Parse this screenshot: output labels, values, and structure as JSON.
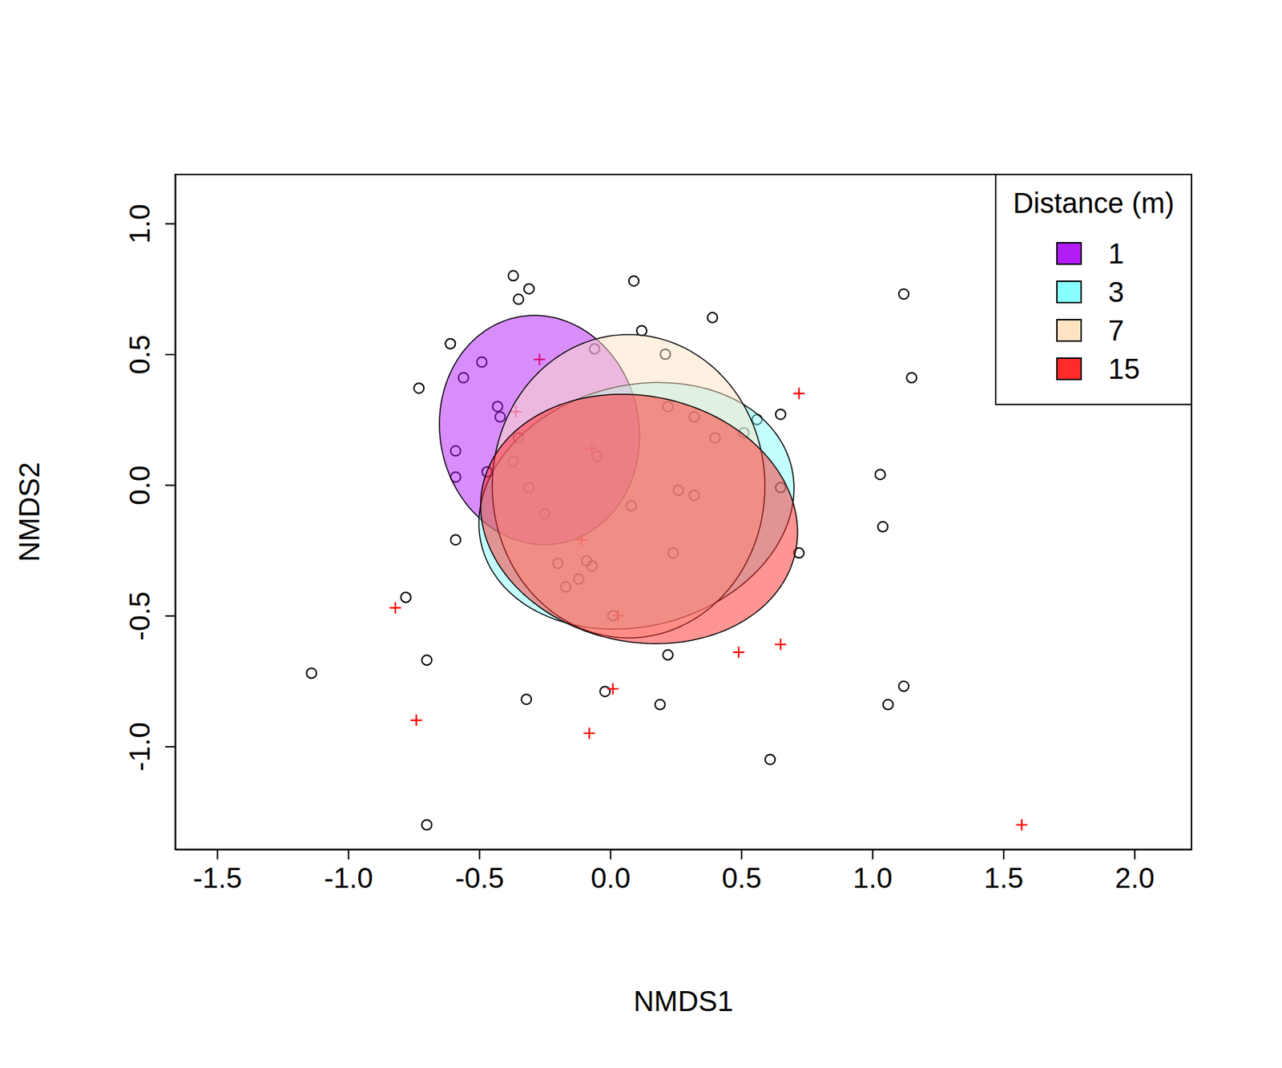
{
  "chart_data": {
    "type": "scatter",
    "x_label": "NMDS1",
    "y_label": "NMDS2",
    "xlim": [
      -1.66,
      2.218
    ],
    "ylim": [
      -1.394,
      1.1875
    ],
    "xticks": [
      {
        "value": -1.5,
        "label": "-1.5"
      },
      {
        "value": -1,
        "label": "-1.0"
      },
      {
        "value": -0.5,
        "label": "-0.5"
      },
      {
        "value": 0,
        "label": "0.0"
      },
      {
        "value": 0.5,
        "label": "0.5"
      },
      {
        "value": 1,
        "label": "1.0"
      },
      {
        "value": 1.5,
        "label": "1.5"
      },
      {
        "value": 2,
        "label": "2.0"
      }
    ],
    "yticks": [
      {
        "value": -1,
        "label": "-1.0"
      },
      {
        "value": -0.5,
        "label": "-0.5"
      },
      {
        "value": 0,
        "label": "0.0"
      },
      {
        "value": 0.5,
        "label": "0.5"
      },
      {
        "value": 1,
        "label": "1.0"
      }
    ],
    "grid": false,
    "legend": "top-right",
    "legend_title": "Distance (m)",
    "series": [
      {
        "marker": "circle",
        "color": "#000000",
        "x": [
          -0.37,
          -0.35,
          -0.31,
          0.09,
          0.39,
          1.12,
          -0.61,
          -0.49,
          -0.06,
          0.12,
          0.21,
          -0.73,
          -0.56,
          1.15,
          -0.43,
          -0.42,
          0.22,
          0.32,
          0.56,
          0.65,
          0.51,
          0.4,
          -0.35,
          -0.59,
          -0.05,
          -0.59,
          -0.47,
          -0.37,
          -0.31,
          0.26,
          0.32,
          0.65,
          1.03,
          -0.25,
          0.08,
          1.04,
          -0.59,
          0.24,
          0.72,
          -0.2,
          -0.09,
          -0.07,
          -0.12,
          -0.17,
          -0.78,
          0.01,
          -0.7,
          0.22,
          -1.14,
          -0.32,
          -0.02,
          0.19,
          1.06,
          1.12,
          0.61,
          -0.7
        ],
        "y": [
          0.8,
          0.71,
          0.75,
          0.78,
          0.64,
          0.73,
          0.54,
          0.47,
          0.52,
          0.59,
          0.5,
          0.37,
          0.41,
          0.41,
          0.3,
          0.26,
          0.3,
          0.26,
          0.25,
          0.27,
          0.2,
          0.18,
          0.18,
          0.13,
          0.11,
          0.03,
          0.05,
          0.09,
          -0.01,
          -0.02,
          -0.04,
          -0.01,
          0.04,
          -0.11,
          -0.08,
          -0.16,
          -0.21,
          -0.26,
          -0.26,
          -0.3,
          -0.29,
          -0.31,
          -0.36,
          -0.39,
          -0.43,
          -0.5,
          -0.67,
          -0.65,
          -0.72,
          -0.82,
          -0.79,
          -0.84,
          -0.84,
          -0.77,
          -1.05,
          -1.3
        ]
      },
      {
        "marker": "plus",
        "color": "#FF0000",
        "x": [
          -0.27,
          0.72,
          -0.36,
          -0.07,
          -0.11,
          0.03,
          -0.82,
          0.49,
          0.65,
          0.01,
          -0.74,
          -0.08,
          1.57
        ],
        "y": [
          0.48,
          0.35,
          0.28,
          0.14,
          -0.21,
          -0.5,
          -0.47,
          -0.64,
          -0.61,
          -0.78,
          -0.9,
          -0.95,
          -1.3
        ]
      }
    ],
    "ellipses": [
      {
        "name": "1",
        "color": "#B21CF7",
        "cx": -0.27,
        "cy": 0.21,
        "rx": 0.38,
        "ry": 0.44,
        "angle": 10
      },
      {
        "name": "3",
        "color": "#87FFFF",
        "cx": 0.1,
        "cy": -0.08,
        "rx": 0.61,
        "ry": 0.46,
        "angle": 15
      },
      {
        "name": "7",
        "color": "#FFE4C4",
        "cx": 0.07,
        "cy": -0.005,
        "rx": 0.52,
        "ry": 0.58,
        "angle": 0
      },
      {
        "name": "15",
        "color": "#FF2A2A",
        "cx": 0.11,
        "cy": -0.13,
        "rx": 0.61,
        "ry": 0.47,
        "angle": -12
      }
    ]
  }
}
